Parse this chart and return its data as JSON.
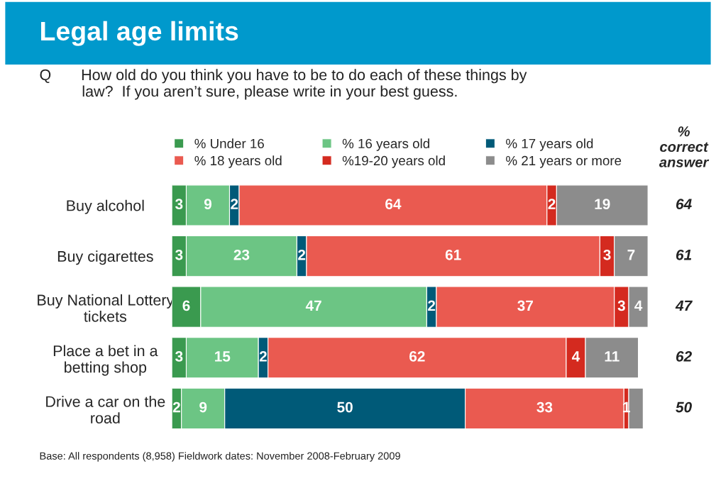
{
  "chart_data": {
    "type": "bar",
    "orientation": "horizontal",
    "stacked": true,
    "title": "Legal age limits",
    "subtitle": "Q       How old do you think you have to be to do each of these things by\n          law?  If you aren’t sure, please write in your best guess.",
    "categories": [
      "Buy alcohol",
      "Buy cigarettes",
      "Buy National Lottery\ntickets",
      "Place a bet in a\nbetting shop",
      "Drive a car on the\nroad"
    ],
    "series": [
      {
        "name": "% Under 16",
        "color": "#3a9a4f",
        "values": [
          3,
          3,
          6,
          3,
          2
        ],
        "value_labels": [
          "3",
          "3",
          "6",
          "3",
          "2"
        ]
      },
      {
        "name": "% 16 years old",
        "color": "#6cc584",
        "values": [
          9,
          23,
          47,
          15,
          9
        ],
        "value_labels": [
          "9",
          "23",
          "47",
          "15",
          "9"
        ]
      },
      {
        "name": "% 17 years old",
        "color": "#005a78",
        "values": [
          2,
          2,
          2,
          2,
          50
        ],
        "value_labels": [
          "2",
          "2",
          "2",
          "2",
          "50"
        ]
      },
      {
        "name": "% 18 years old",
        "color": "#ea5a50",
        "values": [
          64,
          61,
          37,
          62,
          33
        ],
        "value_labels": [
          "64",
          "61",
          "37",
          "62",
          "33"
        ]
      },
      {
        "name": "%19-20 years old",
        "color": "#d42a1f",
        "values": [
          2,
          3,
          3,
          4,
          1
        ],
        "value_labels": [
          "2",
          "3",
          "3",
          "4",
          "1"
        ]
      },
      {
        "name": "% 21 years or more",
        "color": "#8c8c8c",
        "values": [
          19,
          7,
          4,
          11,
          3
        ],
        "value_labels": [
          "19",
          "7",
          "4",
          "11",
          null
        ]
      }
    ],
    "tick_labels": "y",
    "legend": "top",
    "grid": false,
    "annotations": [
      "%\ncorrect\nanswer",
      "64",
      "61",
      "47",
      "62",
      "50",
      "Base: All respondents (8,958) Fieldwork dates: November 2008-February 2009"
    ]
  }
}
